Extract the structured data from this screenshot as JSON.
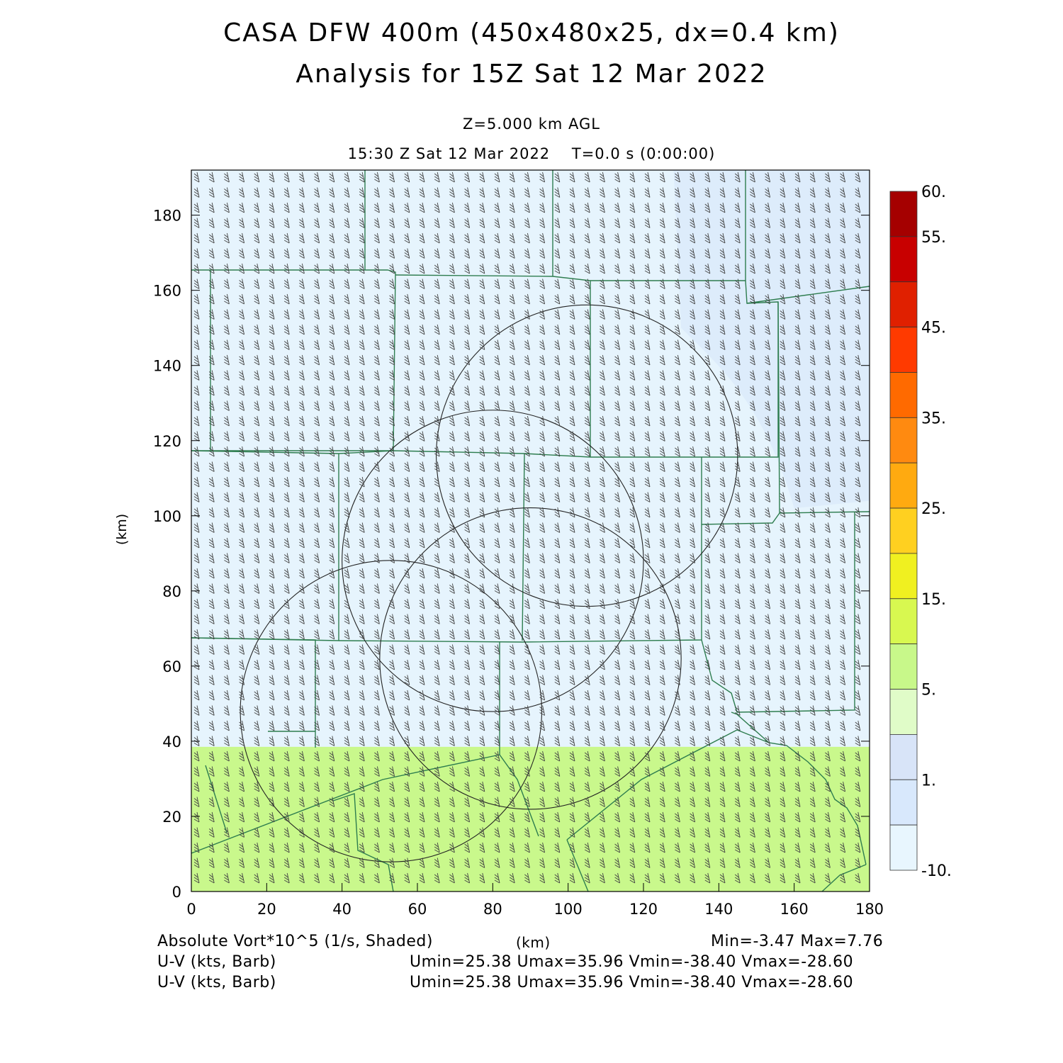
{
  "header": {
    "title_line1": "CASA DFW 400m (450x480x25, dx=0.4 km)",
    "title_line2": "Analysis for 15Z Sat 12 Mar 2022",
    "level": "Z=5.000 km AGL",
    "time": "15:30 Z Sat 12 Mar 2022    T=0.0 s (0:00:00)"
  },
  "axes": {
    "x_unit_label": "(km)",
    "y_unit_label": "(km)",
    "x_ticks": [
      "0",
      "20",
      "40",
      "60",
      "80",
      "100",
      "120",
      "140",
      "160",
      "180"
    ],
    "y_ticks": [
      "0",
      "20",
      "40",
      "60",
      "80",
      "100",
      "120",
      "140",
      "160",
      "180"
    ],
    "x_range": [
      0,
      180
    ],
    "y_range": [
      0,
      192
    ]
  },
  "colorbar": {
    "labels": [
      "60.",
      "55.",
      "45.",
      "35.",
      "25.",
      "15.",
      "5.",
      "1.",
      "-10."
    ],
    "colors": [
      "#a50000",
      "#c80000",
      "#e02000",
      "#ff3a00",
      "#ff6a00",
      "#ff8a10",
      "#ffaa10",
      "#ffd020",
      "#f0f020",
      "#d8f850",
      "#c8f88a",
      "#e0fcc8",
      "#d8e4f8",
      "#d8e8fc",
      "#e8f6fe"
    ]
  },
  "field": {
    "lower_band_color": "#c9f88c",
    "upper_color": "#e6f4fd",
    "upper_right_color": "#dbeafa",
    "band_top_km": 38.5
  },
  "footer": {
    "left1": "Absolute Vort*10^5 (1/s, Shaded)",
    "center_unit": "(km)",
    "right1": "Min=-3.47 Max=7.76",
    "left2": "U-V (kts, Barb)",
    "right2": "Umin=25.38 Umax=35.96 Vmin=-38.40 Vmax=-28.60",
    "left3": "U-V (kts, Barb)",
    "right3": "Umin=25.38 Umax=35.96 Vmin=-38.40 Vmax=-28.60"
  },
  "radar_rings": [
    {
      "cx_km": 105,
      "cy_km": 116,
      "r_km": 40
    },
    {
      "cx_km": 80,
      "cy_km": 88,
      "r_km": 40
    },
    {
      "cx_km": 90,
      "cy_km": 62,
      "r_km": 40
    },
    {
      "cx_km": 53,
      "cy_km": 48,
      "r_km": 40
    }
  ]
}
